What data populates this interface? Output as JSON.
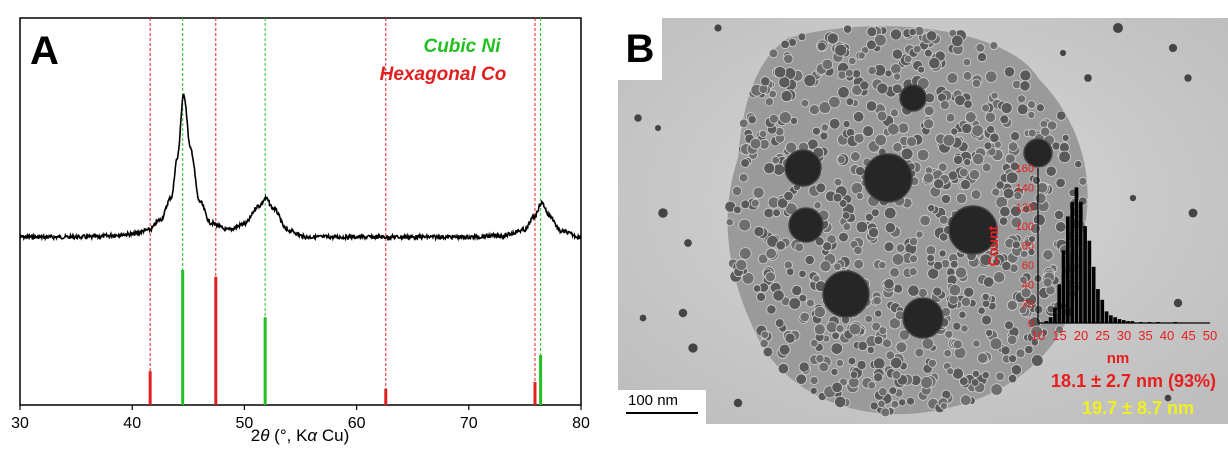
{
  "panel_a": {
    "panel_label": "A",
    "legend": {
      "cubic_ni": "Cubic Ni",
      "hexagonal_co": "Hexagonal Co"
    },
    "xlabel_prefix": "2",
    "xlabel_theta": "θ",
    "xlabel_mid": " (°, K",
    "xlabel_alpha": "α",
    "xlabel_suffix": " Cu)",
    "colors": {
      "ni": "#22c022",
      "co": "#e02020",
      "pattern": "#000000"
    }
  },
  "chart_data": [
    {
      "type": "line",
      "title": "",
      "xlabel": "2θ (°, Kα Cu)",
      "ylabel": "",
      "xlim": [
        30,
        80
      ],
      "x_ticks": [
        "30",
        "40",
        "50",
        "60",
        "70",
        "80"
      ],
      "grid": false,
      "legend_placement": "top-right",
      "series": [
        {
          "name": "",
          "x": [
            30,
            36,
            40,
            41.5,
            42.5,
            43.5,
            44.0,
            44.6,
            45.2,
            46.0,
            47.0,
            48.5,
            50.0,
            51.3,
            51.9,
            52.6,
            53.8,
            55.5,
            60,
            65,
            70,
            73,
            75,
            75.8,
            76.5,
            77.2,
            78.2,
            80
          ],
          "y": [
            0.0,
            0.0,
            0.02,
            0.05,
            0.12,
            0.28,
            0.55,
            1.0,
            0.62,
            0.25,
            0.1,
            0.05,
            0.09,
            0.22,
            0.27,
            0.2,
            0.05,
            0.0,
            0.0,
            0.0,
            0.0,
            0.01,
            0.05,
            0.14,
            0.24,
            0.15,
            0.04,
            0.0
          ]
        }
      ],
      "reference_lines": [
        {
          "name": "Cubic Ni",
          "positions": [
            44.5,
            51.85,
            76.4
          ],
          "intensities": [
            1.0,
            0.65,
            0.37
          ]
        },
        {
          "name": "Hexagonal Co",
          "positions": [
            41.6,
            47.45,
            62.6,
            75.9
          ],
          "intensities": [
            0.25,
            0.95,
            0.12,
            0.17
          ]
        }
      ]
    },
    {
      "type": "bar",
      "title": "",
      "xlabel": "nm",
      "ylabel": "Count",
      "xlim": [
        10,
        50
      ],
      "ylim": [
        0,
        160
      ],
      "x_ticks": [
        "10",
        "15",
        "20",
        "25",
        "30",
        "35",
        "40",
        "45",
        "50"
      ],
      "y_ticks": [
        "0",
        "20",
        "40",
        "60",
        "80",
        "100",
        "120",
        "140",
        "160"
      ],
      "categories": [
        12,
        13,
        14,
        15,
        16,
        17,
        18,
        19,
        20,
        21,
        22,
        23,
        24,
        25,
        26,
        27,
        28,
        29,
        30,
        31,
        32,
        34,
        36,
        38,
        42
      ],
      "values": [
        2,
        6,
        16,
        40,
        75,
        110,
        125,
        140,
        125,
        100,
        85,
        58,
        35,
        24,
        12,
        8,
        6,
        4,
        3,
        2,
        2,
        1,
        1,
        1,
        1
      ]
    }
  ],
  "panel_b": {
    "panel_label": "B",
    "scale_bar": "100 nm",
    "histogram_xlabel": "nm",
    "histogram_ylabel": "Count",
    "stat_primary": "18.1 ± 2.7 nm (93%)",
    "stat_secondary": "19.7 ± 8.7 nm",
    "colors": {
      "primary": "#e81e1e",
      "secondary": "#f0f020",
      "histogram_text": "#e81e1e"
    }
  }
}
